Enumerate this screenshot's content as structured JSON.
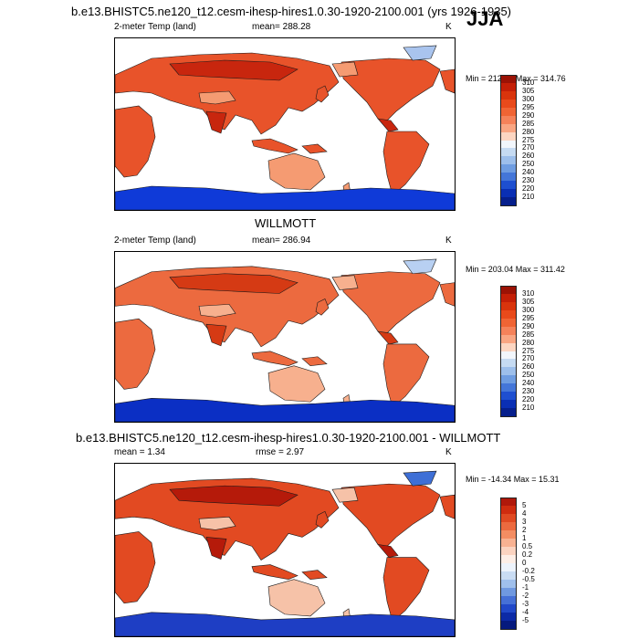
{
  "header": {
    "title": "b.e13.BHISTC5.ne120_t12.cesm-ihesp-hires1.0.30-1920-2100.001 (yrs 1926-1935)",
    "season": "JJA"
  },
  "panels": [
    {
      "title": "",
      "variable": "2-meter Temp (land)",
      "stat": "mean= 288.28",
      "units": "K",
      "minmax": "Min = 212.39 Max = 314.76",
      "colorbar": {
        "labels": [
          "310",
          "305",
          "300",
          "295",
          "290",
          "285",
          "280",
          "275",
          "270",
          "260",
          "250",
          "240",
          "230",
          "220",
          "210"
        ],
        "colors": [
          "#9b1205",
          "#c41f07",
          "#d9340c",
          "#e84a1b",
          "#f06434",
          "#f5825a",
          "#f9a683",
          "#fcd6c2",
          "#f2f6fb",
          "#c6dbf2",
          "#9dbfeb",
          "#6f9de1",
          "#4476d8",
          "#1e4fd0",
          "#0a2fb4",
          "#061f8c"
        ]
      },
      "map_palette": {
        "land_main": "#e8532a",
        "land_warm": "#c8260e",
        "land_cool": "#f59b72",
        "land_cold": "#a9c4ee",
        "antarctica": "#0f3ad8",
        "coast": "#1a1a1a"
      }
    },
    {
      "title": "WILLMOTT",
      "variable": "2-meter Temp (land)",
      "stat": "mean= 286.94",
      "units": "K",
      "minmax": "Min = 203.04 Max = 311.42",
      "colorbar": {
        "labels": [
          "310",
          "305",
          "300",
          "295",
          "290",
          "285",
          "280",
          "275",
          "270",
          "260",
          "250",
          "240",
          "230",
          "220",
          "210"
        ],
        "colors": [
          "#9b1205",
          "#c41f07",
          "#d9340c",
          "#e84a1b",
          "#f06434",
          "#f5825a",
          "#f9a683",
          "#fcd6c2",
          "#f2f6fb",
          "#c6dbf2",
          "#9dbfeb",
          "#6f9de1",
          "#4476d8",
          "#1e4fd0",
          "#0a2fb4",
          "#061f8c"
        ]
      },
      "map_palette": {
        "land_main": "#ec6a3f",
        "land_warm": "#d53a14",
        "land_cool": "#f7b08e",
        "land_cold": "#b8d0f2",
        "antarctica": "#0b2fc4",
        "coast": "#1a1a1a"
      }
    },
    {
      "title": "b.e13.BHISTC5.ne120_t12.cesm-ihesp-hires1.0.30-1920-2100.001 - WILLMOTT",
      "variable": "mean =   1.34",
      "stat": "rmse =   2.97",
      "units": "K",
      "minmax": "Min = -14.34 Max =  15.31",
      "colorbar": {
        "labels": [
          "5",
          "4",
          "3",
          "2",
          "1",
          "0.5",
          "0.2",
          "0",
          "-0.2",
          "-0.5",
          "-1",
          "-2",
          "-3",
          "-4",
          "-5"
        ],
        "colors": [
          "#b0180a",
          "#cf2c0f",
          "#e04a22",
          "#ec6a3f",
          "#f48d62",
          "#f8b292",
          "#fbd3c0",
          "#fdeee6",
          "#edf3fb",
          "#c9dcf3",
          "#a0c0ec",
          "#7099e0",
          "#4670d6",
          "#2148c8",
          "#0c2aa6",
          "#061a7e"
        ]
      },
      "map_palette": {
        "land_main": "#e24a22",
        "land_warm": "#b51a0a",
        "land_cool": "#f6c2a8",
        "land_cold": "#3e6fd6",
        "antarctica": "#1e3ec4",
        "coast": "#1a1a1a"
      }
    }
  ]
}
